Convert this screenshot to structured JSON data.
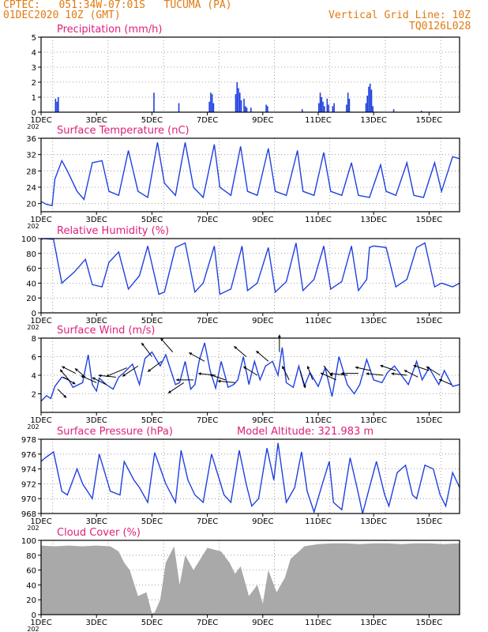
{
  "header": {
    "line1": "CPTEC:   051:34W-07:01S   TUCUMA (PA)",
    "line2": "01DEC2020 10Z (GMT)",
    "right1": "Vertical Grid Line: 10Z",
    "right2": "TQ0126L028"
  },
  "colors": {
    "header": "#e07a10",
    "title": "#e0207a",
    "line": "#2040e0",
    "bar": "#2040e0",
    "cloud": "#a9a9a9",
    "arrow": "#000000"
  },
  "x_axis": {
    "ticks": [
      "1DEC",
      "3DEC",
      "5DEC",
      "7DEC",
      "9DEC",
      "11DEC",
      "13DEC",
      "15DEC"
    ],
    "tick_days": [
      1,
      3,
      5,
      7,
      9,
      11,
      13,
      15
    ],
    "xlim": [
      1,
      16.1
    ],
    "year_label": "202"
  },
  "chart_data": [
    {
      "type": "bar",
      "title": "Precipitation (mm/h)",
      "ylim": [
        0,
        5
      ],
      "yticks": [
        0,
        1,
        2,
        3,
        4,
        5
      ],
      "x": [
        1.5,
        1.55,
        1.6,
        5.05,
        5.95,
        7.05,
        7.1,
        7.15,
        7.2,
        8.0,
        8.05,
        8.1,
        8.15,
        8.2,
        8.3,
        8.35,
        8.4,
        8.55,
        9.1,
        9.15,
        10.4,
        11.0,
        11.05,
        11.1,
        11.15,
        11.2,
        11.3,
        11.35,
        11.5,
        11.55,
        12.0,
        12.05,
        12.1,
        12.7,
        12.75,
        12.8,
        12.85,
        12.9,
        12.95,
        13.7,
        14.7
      ],
      "values": [
        0.9,
        0.7,
        1.0,
        1.3,
        0.6,
        0.7,
        1.3,
        1.2,
        0.6,
        1.2,
        2.0,
        1.6,
        1.3,
        0.8,
        0.9,
        0.4,
        0.3,
        0.3,
        0.5,
        0.4,
        0.2,
        0.6,
        1.3,
        1.0,
        0.7,
        0.4,
        0.9,
        0.5,
        0.4,
        0.6,
        0.5,
        1.3,
        0.9,
        0.6,
        1.1,
        1.7,
        1.9,
        1.5,
        0.4,
        0.2,
        0.1
      ]
    },
    {
      "type": "line",
      "title": "Surface Temperature (nC)",
      "ylim": [
        18,
        36
      ],
      "yticks": [
        20,
        24,
        28,
        32,
        36
      ],
      "x": [
        1.0,
        1.2,
        1.4,
        1.5,
        1.75,
        1.95,
        2.3,
        2.55,
        2.85,
        3.2,
        3.45,
        3.8,
        4.15,
        4.5,
        4.85,
        5.2,
        5.45,
        5.85,
        6.2,
        6.5,
        6.85,
        7.25,
        7.45,
        7.85,
        8.2,
        8.45,
        8.8,
        9.2,
        9.45,
        9.85,
        10.25,
        10.45,
        10.85,
        11.2,
        11.45,
        11.85,
        12.2,
        12.45,
        12.85,
        13.25,
        13.45,
        13.8,
        14.2,
        14.45,
        14.8,
        15.2,
        15.45,
        15.85,
        16.1
      ],
      "values": [
        20.5,
        19.8,
        19.5,
        26,
        30.5,
        28,
        23,
        21,
        30,
        30.5,
        23,
        22,
        33,
        23,
        21.5,
        35,
        25,
        22,
        35,
        24,
        21.5,
        34.5,
        24,
        22,
        34,
        23,
        22,
        33.5,
        23,
        22,
        33,
        23,
        22,
        32.5,
        23,
        22,
        30,
        22,
        21.5,
        29.5,
        23,
        22,
        30,
        22,
        21.5,
        30,
        23,
        31.5,
        31
      ]
    },
    {
      "type": "line",
      "title": "Relative Humidity (%)",
      "ylim": [
        0,
        100
      ],
      "yticks": [
        0,
        20,
        40,
        60,
        80,
        100
      ],
      "x": [
        1.0,
        1.1,
        1.45,
        1.75,
        2.2,
        2.6,
        2.85,
        3.2,
        3.45,
        3.8,
        4.15,
        4.55,
        4.85,
        5.25,
        5.45,
        5.85,
        6.2,
        6.55,
        6.85,
        7.25,
        7.45,
        7.85,
        8.25,
        8.45,
        8.8,
        9.2,
        9.45,
        9.85,
        10.2,
        10.45,
        10.85,
        11.2,
        11.45,
        11.85,
        12.2,
        12.45,
        12.75,
        12.85,
        13.0,
        13.45,
        13.8,
        14.2,
        14.55,
        14.85,
        15.2,
        15.45,
        15.85,
        16.1
      ],
      "values": [
        99,
        100,
        99,
        40,
        55,
        72,
        38,
        35,
        68,
        82,
        32,
        50,
        90,
        25,
        28,
        88,
        94,
        28,
        40,
        90,
        25,
        32,
        90,
        30,
        40,
        88,
        28,
        42,
        94,
        30,
        45,
        90,
        32,
        42,
        90,
        30,
        45,
        88,
        90,
        88,
        35,
        45,
        88,
        94,
        35,
        40,
        35,
        40
      ]
    },
    {
      "type": "line",
      "title": "Surface Wind (m/s)",
      "ylim": [
        0,
        8
      ],
      "yticks": [
        2,
        4,
        6,
        8
      ],
      "x": [
        1.0,
        1.2,
        1.35,
        1.5,
        1.75,
        2.0,
        2.15,
        2.5,
        2.7,
        2.85,
        3.0,
        3.1,
        3.35,
        3.6,
        3.8,
        4.0,
        4.3,
        4.55,
        4.75,
        5.0,
        5.3,
        5.5,
        5.85,
        6.0,
        6.2,
        6.4,
        6.55,
        6.7,
        6.9,
        7.1,
        7.3,
        7.5,
        7.75,
        7.95,
        8.1,
        8.3,
        8.5,
        8.7,
        8.9,
        9.1,
        9.35,
        9.55,
        9.7,
        9.85,
        10.1,
        10.3,
        10.5,
        10.7,
        11.0,
        11.25,
        11.5,
        11.75,
        12.05,
        12.3,
        12.5,
        12.75,
        13.0,
        13.3,
        13.5,
        13.75,
        14.0,
        14.25,
        14.55,
        14.75,
        15.0,
        15.35,
        15.55,
        15.85,
        16.1
      ],
      "values": [
        1.2,
        1.8,
        1.5,
        2.8,
        3.8,
        3.5,
        2.7,
        3.2,
        6.2,
        3.0,
        2.3,
        3.7,
        3.0,
        2.5,
        3.8,
        4.3,
        5.2,
        3.0,
        5.8,
        6.5,
        5.0,
        6.2,
        3.0,
        3.2,
        5.5,
        2.5,
        3.0,
        5.5,
        7.5,
        4.5,
        2.6,
        5.5,
        2.7,
        3.0,
        3.5,
        6.0,
        3.0,
        5.5,
        3.5,
        5.0,
        5.5,
        4.0,
        7.0,
        3.2,
        2.7,
        5.0,
        2.8,
        4.3,
        2.8,
        4.8,
        1.7,
        6.0,
        3.0,
        2.0,
        3.0,
        5.7,
        3.5,
        3.2,
        4.3,
        5.0,
        4.0,
        3.0,
        5.5,
        3.5,
        4.8,
        3.0,
        4.5,
        2.8,
        3.0
      ]
    },
    {
      "type": "line",
      "title": "Surface Pressure (hPa)",
      "ylim": [
        968,
        978
      ],
      "yticks": [
        968,
        970,
        972,
        974,
        976,
        978
      ],
      "x": [
        1.0,
        1.15,
        1.45,
        1.75,
        1.95,
        2.3,
        2.5,
        2.85,
        3.1,
        3.5,
        3.85,
        4.0,
        4.35,
        4.55,
        4.85,
        5.1,
        5.5,
        5.85,
        6.05,
        6.3,
        6.55,
        6.85,
        7.15,
        7.4,
        7.6,
        7.85,
        8.15,
        8.4,
        8.6,
        8.85,
        9.15,
        9.4,
        9.55,
        9.85,
        10.15,
        10.4,
        10.6,
        10.85,
        11.15,
        11.4,
        11.55,
        11.85,
        12.15,
        12.4,
        12.6,
        12.85,
        13.1,
        13.4,
        13.55,
        13.85,
        14.15,
        14.4,
        14.55,
        14.85,
        15.15,
        15.4,
        15.6,
        15.85,
        16.1
      ],
      "values": [
        975.0,
        975.5,
        976.3,
        971.0,
        970.5,
        974.0,
        972.0,
        970.0,
        976.0,
        971.0,
        970.5,
        975.0,
        972.5,
        971.5,
        969.5,
        976.2,
        972.0,
        969.5,
        976.5,
        972.5,
        970.5,
        969.5,
        976.0,
        973.0,
        970.5,
        969.5,
        976.5,
        972.0,
        969.0,
        970.0,
        976.8,
        972.5,
        977.5,
        969.5,
        971.5,
        976.3,
        971.0,
        968.2,
        972.0,
        975.0,
        969.5,
        968.5,
        975.5,
        971.5,
        968.0,
        971.5,
        975.0,
        970.5,
        969.0,
        973.5,
        974.5,
        970.5,
        970.0,
        974.5,
        974.0,
        970.5,
        969.0,
        973.5,
        971.5
      ]
    },
    {
      "type": "area",
      "title": "Cloud Cover (%)",
      "ylim": [
        0,
        100
      ],
      "yticks": [
        0,
        20,
        40,
        60,
        80,
        100
      ],
      "x": [
        1.0,
        1.5,
        2.0,
        2.5,
        3.0,
        3.5,
        3.8,
        4.0,
        4.2,
        4.5,
        4.8,
        5.0,
        5.1,
        5.3,
        5.5,
        5.8,
        6.0,
        6.2,
        6.5,
        7.0,
        7.5,
        7.8,
        8.0,
        8.2,
        8.5,
        8.8,
        9.0,
        9.2,
        9.5,
        9.8,
        10.0,
        10.3,
        10.5,
        11.0,
        11.5,
        12.0,
        12.5,
        13.0,
        13.5,
        14.0,
        14.5,
        15.0,
        15.5,
        16.1
      ],
      "values": [
        93,
        92,
        93,
        92,
        93,
        92,
        85,
        70,
        60,
        25,
        30,
        2,
        3,
        20,
        70,
        92,
        40,
        80,
        60,
        90,
        85,
        70,
        55,
        65,
        25,
        40,
        15,
        60,
        30,
        50,
        75,
        85,
        92,
        95,
        96,
        96,
        95,
        96,
        96,
        95,
        96,
        96,
        95,
        96
      ]
    }
  ],
  "panels_extra": {
    "model_altitude": "Model Altitude: 321.983 m"
  },
  "wind_arrows": {
    "x": [
      1.6,
      1.8,
      2.0,
      2.25,
      2.6,
      3.0,
      3.35,
      3.7,
      4.1,
      4.5,
      5.0,
      5.35,
      5.75,
      6.15,
      6.5,
      6.9,
      7.3,
      7.65,
      8.0,
      8.4,
      8.8,
      9.2,
      9.6,
      9.95,
      10.35,
      10.8,
      11.2,
      11.65,
      12.05,
      12.45,
      12.9,
      13.35,
      13.8,
      14.2,
      14.6,
      15.0,
      15.4,
      15.8
    ],
    "u": [
      0.5,
      0.7,
      -0.5,
      -0.8,
      -0.6,
      -0.9,
      -0.8,
      -1.0,
      -1.2,
      -0.9,
      -0.6,
      -0.8,
      -0.7,
      -0.9,
      -1.0,
      -0.9,
      -1.0,
      -0.9,
      -1.0,
      -0.7,
      -0.8,
      -0.7,
      0.0,
      -0.4,
      0.3,
      -0.3,
      0.5,
      -0.9,
      -1.0,
      -1.0,
      -0.9,
      -1.0,
      -0.9,
      -0.9,
      -0.8,
      -0.9,
      -0.8,
      -0.7
    ],
    "v": [
      -0.5,
      -0.4,
      0.6,
      0.4,
      0.5,
      0.4,
      0.4,
      0.1,
      -0.5,
      -0.6,
      0.8,
      -0.6,
      0.8,
      -0.6,
      0.0,
      0.5,
      0.1,
      0.3,
      0.1,
      0.6,
      0.5,
      0.6,
      1.0,
      0.8,
      -1.0,
      0.8,
      -0.6,
      0.4,
      0.1,
      0.0,
      0.2,
      0.1,
      0.3,
      0.1,
      0.4,
      0.3,
      0.5,
      0.3
    ],
    "speed": [
      2.5,
      3.8,
      3.5,
      4.2,
      3.8,
      3.2,
      3.0,
      3.8,
      4.8,
      5.0,
      6.0,
      5.5,
      6.5,
      3.2,
      3.5,
      5.5,
      4.0,
      3.5,
      3.2,
      6.0,
      4.0,
      5.5,
      6.5,
      3.5,
      4.5,
      3.5,
      5.0,
      3.5,
      4.0,
      4.2,
      4.5,
      4.0,
      4.5,
      4.0,
      3.8,
      4.5,
      4.0,
      3.0
    ]
  }
}
